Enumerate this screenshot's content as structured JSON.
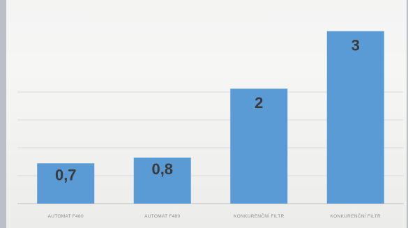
{
  "chart_data": {
    "type": "bar",
    "title": "",
    "xlabel": "",
    "ylabel": "",
    "categories": [
      "AUTOMAT F480",
      "AUTOMAT F480",
      "KONKURENČNÍ FILTR",
      "KONKURENČNÍ FILTR"
    ],
    "values": [
      0.7,
      0.8,
      2,
      3
    ],
    "value_labels": [
      "0,7",
      "0,8",
      "2",
      "3"
    ],
    "ylim": [
      0,
      3.3
    ],
    "grid": true,
    "bar_color": "#5b9bd5",
    "label_color": "#3a3a3a"
  }
}
